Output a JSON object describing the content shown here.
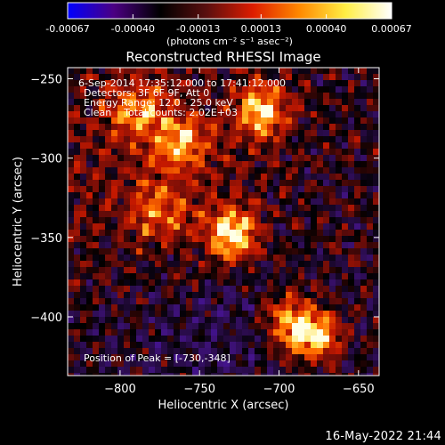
{
  "colorbar": {
    "ticks": [
      "-0.00067",
      "-0.00040",
      "-0.00013",
      "0.00013",
      "0.00040",
      "0.00067"
    ],
    "unit_label": "(photons cm⁻² s⁻¹ asec⁻²)",
    "range": [
      -0.00067,
      0.00067
    ],
    "stops": [
      "#0000ff",
      "#4b0082",
      "#000000",
      "#5a0f0f",
      "#dd1c00",
      "#ff8800",
      "#ffee44",
      "#ffffff"
    ]
  },
  "chart_data": {
    "type": "heatmap",
    "title": "Reconstructed RHESSI Image",
    "xlabel": "Heliocentric X (arcsec)",
    "ylabel": "Heliocentric Y (arcsec)",
    "xlim": [
      -833,
      -637
    ],
    "ylim": [
      -437,
      -243
    ],
    "xticks": [
      -800,
      -750,
      -700,
      -650
    ],
    "yticks": [
      -250,
      -300,
      -350,
      -400
    ],
    "xtick_labels": [
      "−800",
      "−750",
      "−700",
      "−650"
    ],
    "ytick_labels": [
      "−250",
      "−300",
      "−350",
      "−400"
    ],
    "annotations": [
      "6-Sep-2014 17:35:12.000 to 17:41:12.000",
      "Detectors: 3F 6F 9F, Att 0",
      "Energy Range: 12.0 - 25.0 keV",
      "Clean    Total counts: 2.02E+03"
    ],
    "peak_label": "Position of Peak = [-730,-348]",
    "peak": [
      -730,
      -348
    ],
    "bright_sources": [
      {
        "x": -730,
        "y": -348,
        "intensity": 1.0
      },
      {
        "x": -678,
        "y": -412,
        "intensity": 0.95
      },
      {
        "x": -710,
        "y": -270,
        "intensity": 0.85
      },
      {
        "x": -762,
        "y": -290,
        "intensity": 0.6
      },
      {
        "x": -790,
        "y": -270,
        "intensity": 0.55
      },
      {
        "x": -775,
        "y": -335,
        "intensity": 0.5
      },
      {
        "x": -695,
        "y": -402,
        "intensity": 0.65
      }
    ]
  },
  "timestamp": "16-May-2022 21:44"
}
